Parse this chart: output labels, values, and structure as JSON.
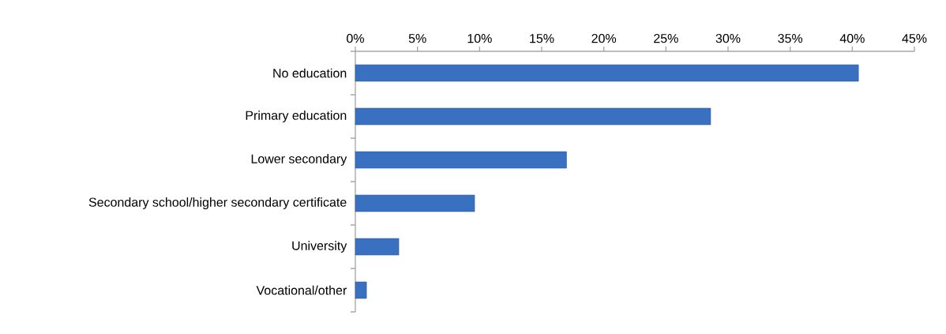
{
  "chart_data": {
    "type": "bar",
    "orientation": "horizontal",
    "categories": [
      "No education",
      "Primary education",
      "Lower secondary",
      "Secondary school/higher secondary certificate",
      "University",
      "Vocational/other"
    ],
    "values": [
      40.5,
      28.6,
      17.0,
      9.6,
      3.5,
      0.9
    ],
    "color": "#3a70c0",
    "xlim": [
      0,
      45
    ],
    "xticks": [
      {
        "value": 0,
        "label": "0%"
      },
      {
        "value": 5,
        "label": "5%"
      },
      {
        "value": 10,
        "label": "10%"
      },
      {
        "value": 15,
        "label": "15%"
      },
      {
        "value": 20,
        "label": "20%"
      },
      {
        "value": 25,
        "label": "25%"
      },
      {
        "value": 30,
        "label": "30%"
      },
      {
        "value": 35,
        "label": "35%"
      },
      {
        "value": 40,
        "label": "40%"
      },
      {
        "value": 45,
        "label": "45%"
      }
    ],
    "grid": false
  }
}
